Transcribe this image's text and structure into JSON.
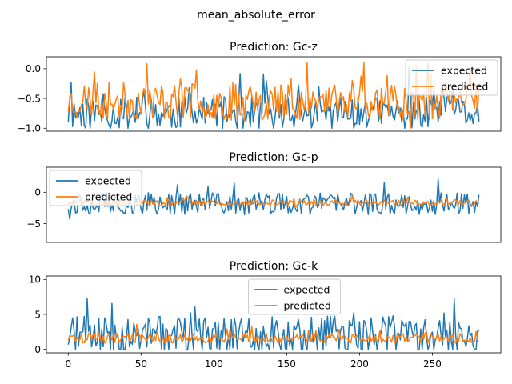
{
  "figure": {
    "suptitle": "mean_absolute_error"
  },
  "colors": {
    "expected": "#1f77b4",
    "predicted": "#ff7f0e"
  },
  "chart_data": [
    {
      "type": "line",
      "title": "Prediction: Gc-z",
      "xlim": [
        -15,
        297
      ],
      "ylim": [
        -1.05,
        0.2
      ],
      "yticks": [
        0.0,
        -0.5,
        -1.0
      ],
      "ytick_labels": [
        "0.0",
        "−0.5",
        "−1.0"
      ],
      "show_xticks": false,
      "legend_loc": "upper right",
      "n_points": 283,
      "series": [
        {
          "name": "expected",
          "base": -0.75,
          "amp": 0.35,
          "seed": 11,
          "min": -1.0,
          "max": 0.02
        },
        {
          "name": "predicted",
          "base": -0.55,
          "amp": 0.4,
          "seed": 23,
          "min": -1.0,
          "max": 0.1
        }
      ]
    },
    {
      "type": "line",
      "title": "Prediction: Gc-p",
      "xlim": [
        -15,
        297
      ],
      "ylim": [
        -8,
        4
      ],
      "yticks": [
        0,
        -5
      ],
      "ytick_labels": [
        "0",
        "−5"
      ],
      "show_xticks": false,
      "legend_loc": "upper left",
      "n_points": 283,
      "series": [
        {
          "name": "expected",
          "base": -1.8,
          "amp": 2.2,
          "seed": 37,
          "min": -7.2,
          "max": 3.8
        },
        {
          "name": "predicted",
          "base": -1.7,
          "amp": 0.6,
          "seed": 51,
          "min": -3.0,
          "max": -0.5
        }
      ]
    },
    {
      "type": "line",
      "title": "Prediction: Gc-k",
      "xlim": [
        -15,
        297
      ],
      "ylim": [
        -0.5,
        10.5
      ],
      "yticks": [
        10,
        5,
        0
      ],
      "ytick_labels": [
        "10",
        "5",
        "0"
      ],
      "xticks": [
        0,
        50,
        100,
        150,
        200,
        250
      ],
      "xtick_labels": [
        "0",
        "50",
        "100",
        "150",
        "200",
        "250"
      ],
      "show_xticks": true,
      "legend_loc": "upper center",
      "n_points": 283,
      "series": [
        {
          "name": "expected",
          "base": 2.0,
          "amp": 3.5,
          "seed": 71,
          "min": 0.0,
          "max": 10.0
        },
        {
          "name": "predicted",
          "base": 1.6,
          "amp": 0.9,
          "seed": 89,
          "min": 0.2,
          "max": 3.6
        }
      ]
    }
  ]
}
